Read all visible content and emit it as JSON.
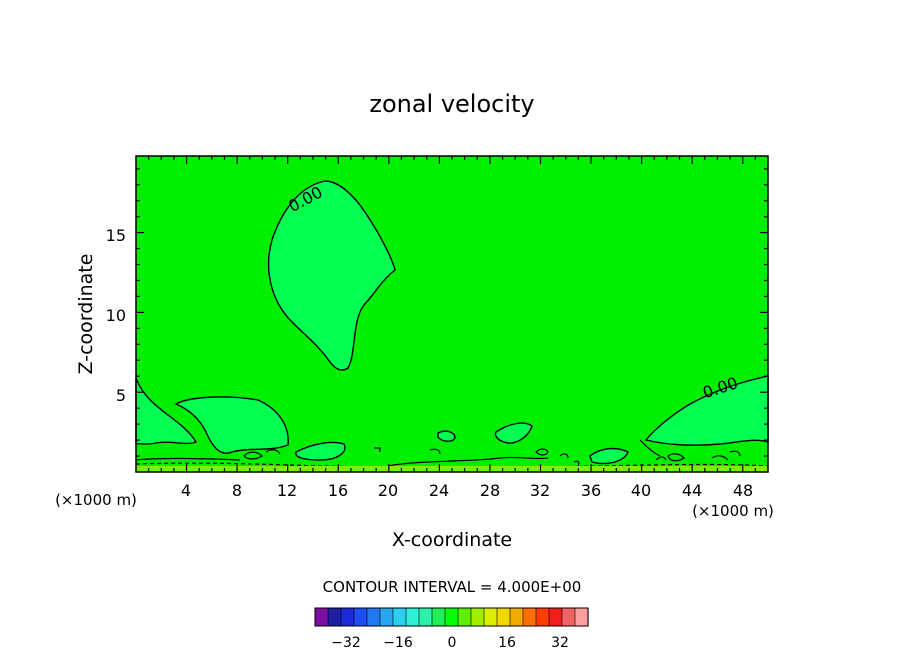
{
  "chart_data": {
    "type": "contour",
    "title": "zonal velocity",
    "xlabel": "X-coordinate",
    "ylabel": "Z-coordinate",
    "x_units": "(×1000 m)",
    "xlim": [
      0,
      50
    ],
    "ylim": [
      0,
      19.8
    ],
    "x_ticks": [
      "4",
      "8",
      "12",
      "16",
      "20",
      "24",
      "28",
      "32",
      "36",
      "40",
      "44",
      "48"
    ],
    "y_ticks": [
      "5",
      "10",
      "15"
    ],
    "contour_labels": [
      "0.00",
      "0.00"
    ],
    "contour_interval_text": "CONTOUR INTERVAL = 4.000E+00",
    "colorbar": {
      "labels": [
        "−32",
        "−16",
        "0",
        "16",
        "32"
      ],
      "colors": [
        "#7a0fa0",
        "#1e1ea0",
        "#1a2ad8",
        "#1e4cf0",
        "#2378ee",
        "#28a6f0",
        "#2cd0ee",
        "#2ef0d8",
        "#2ef0a8",
        "#22ee5a",
        "#00ff00",
        "#5eee00",
        "#a2ee00",
        "#dcee00",
        "#f0d800",
        "#f0aa00",
        "#ff7000",
        "#ff3c00",
        "#f01e1e",
        "#f06464",
        "#ff9e9e"
      ]
    },
    "fill_colors": {
      "background": "#00ef00",
      "region_0_to_4": "#00ff50",
      "near_surface": "#7fef00"
    }
  }
}
